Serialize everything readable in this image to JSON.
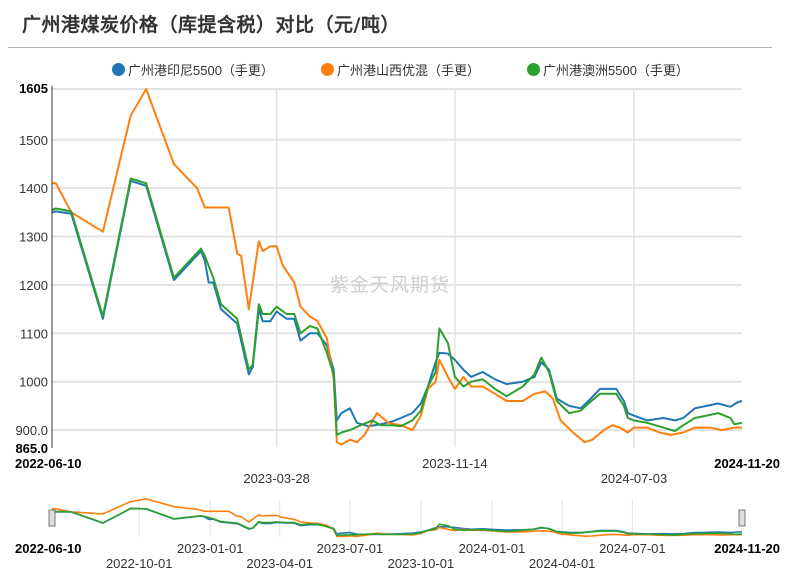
{
  "header": {
    "title": "广州港煤炭价格（库提含税）对比（元/吨）"
  },
  "watermark": "紫金天风期货",
  "legend": [
    {
      "label": "广州港印尼5500（手更)",
      "color": "#1f77b4"
    },
    {
      "label": "广州港山西优混（手更)",
      "color": "#ff7f0e"
    },
    {
      "label": "广州港澳洲5500（手更)",
      "color": "#2ca02c"
    }
  ],
  "legend_display": [
    "广州港印尼5500（手更）",
    "广州港山西优混（手更）",
    "广州港澳洲5500（手更）"
  ],
  "axes": {
    "y_max_label": "1605",
    "y_min_label": "865.0",
    "y_ticks": [
      "1500",
      "1400",
      "1300",
      "1200",
      "1100",
      "1000",
      "900.0"
    ],
    "x_start_label": "2022-06-10",
    "x_end_label": "2024-11-20",
    "x_ticks": [
      "2023-03-28",
      "2023-11-14",
      "2024-07-03"
    ]
  },
  "navigator": {
    "start_label": "2022-06-10",
    "end_label": "2024-11-20",
    "ticks_upper": [
      "2023-01-01",
      "2023-07-01",
      "2024-01-01",
      "2024-07-01"
    ],
    "ticks_lower": [
      "2022-10-01",
      "2023-04-01",
      "2023-10-01",
      "2024-04-01"
    ]
  },
  "chart_data": {
    "type": "line",
    "title": "广州港煤炭价格（库提含税）对比（元/吨）",
    "xlabel": "",
    "ylabel": "元/吨",
    "ylim": [
      865,
      1605
    ],
    "xlim": [
      "2022-06-10",
      "2024-11-20"
    ],
    "grid": true,
    "legend_position": "top",
    "x_ticks": [
      "2022-06-10",
      "2023-03-28",
      "2023-11-14",
      "2024-07-03",
      "2024-11-20"
    ],
    "series": [
      {
        "name": "广州港印尼5500（手更）",
        "color": "#1f77b4",
        "points": [
          [
            "2022-06-10",
            1350
          ],
          [
            "2022-06-15",
            1352
          ],
          [
            "2022-07-05",
            1347
          ],
          [
            "2022-08-15",
            1130
          ],
          [
            "2022-09-20",
            1415
          ],
          [
            "2022-10-10",
            1405
          ],
          [
            "2022-11-15",
            1210
          ],
          [
            "2022-12-20",
            1270
          ],
          [
            "2022-12-25",
            1250
          ],
          [
            "2022-12-30",
            1205
          ],
          [
            "2023-01-05",
            1205
          ],
          [
            "2023-01-15",
            1150
          ],
          [
            "2023-02-05",
            1120
          ],
          [
            "2023-02-20",
            1015
          ],
          [
            "2023-02-25",
            1030
          ],
          [
            "2023-03-05",
            1150
          ],
          [
            "2023-03-10",
            1125
          ],
          [
            "2023-03-20",
            1125
          ],
          [
            "2023-03-28",
            1145
          ],
          [
            "2023-04-10",
            1130
          ],
          [
            "2023-04-20",
            1130
          ],
          [
            "2023-04-28",
            1085
          ],
          [
            "2023-05-10",
            1100
          ],
          [
            "2023-05-20",
            1100
          ],
          [
            "2023-06-01",
            1075
          ],
          [
            "2023-06-10",
            1025
          ],
          [
            "2023-06-14",
            920
          ],
          [
            "2023-06-20",
            935
          ],
          [
            "2023-07-01",
            945
          ],
          [
            "2023-07-10",
            915
          ],
          [
            "2023-07-25",
            908
          ],
          [
            "2023-08-10",
            912
          ],
          [
            "2023-08-25",
            918
          ],
          [
            "2023-09-05",
            925
          ],
          [
            "2023-09-20",
            935
          ],
          [
            "2023-10-01",
            955
          ],
          [
            "2023-10-10",
            990
          ],
          [
            "2023-10-20",
            1040
          ],
          [
            "2023-10-25",
            1060
          ],
          [
            "2023-11-05",
            1058
          ],
          [
            "2023-11-14",
            1045
          ],
          [
            "2023-11-25",
            1025
          ],
          [
            "2023-12-05",
            1010
          ],
          [
            "2023-12-20",
            1020
          ],
          [
            "2024-01-05",
            1005
          ],
          [
            "2024-01-20",
            995
          ],
          [
            "2024-02-10",
            1000
          ],
          [
            "2024-02-25",
            1010
          ],
          [
            "2024-03-05",
            1040
          ],
          [
            "2024-03-15",
            1025
          ],
          [
            "2024-03-25",
            965
          ],
          [
            "2024-04-10",
            950
          ],
          [
            "2024-04-25",
            945
          ],
          [
            "2024-05-05",
            960
          ],
          [
            "2024-05-20",
            985
          ],
          [
            "2024-06-10",
            985
          ],
          [
            "2024-06-20",
            960
          ],
          [
            "2024-06-25",
            935
          ],
          [
            "2024-07-03",
            930
          ],
          [
            "2024-07-20",
            920
          ],
          [
            "2024-08-10",
            925
          ],
          [
            "2024-08-25",
            920
          ],
          [
            "2024-09-05",
            925
          ],
          [
            "2024-09-20",
            945
          ],
          [
            "2024-10-05",
            950
          ],
          [
            "2024-10-20",
            955
          ],
          [
            "2024-11-05",
            948
          ],
          [
            "2024-11-15",
            958
          ],
          [
            "2024-11-20",
            960
          ]
        ]
      },
      {
        "name": "广州港山西优混（手更）",
        "color": "#ff7f0e",
        "points": [
          [
            "2022-06-10",
            1410
          ],
          [
            "2022-06-15",
            1410
          ],
          [
            "2022-07-05",
            1350
          ],
          [
            "2022-08-15",
            1310
          ],
          [
            "2022-09-20",
            1550
          ],
          [
            "2022-10-10",
            1605
          ],
          [
            "2022-11-15",
            1450
          ],
          [
            "2022-12-15",
            1400
          ],
          [
            "2022-12-25",
            1360
          ],
          [
            "2023-01-25",
            1360
          ],
          [
            "2023-02-01",
            1300
          ],
          [
            "2023-02-05",
            1265
          ],
          [
            "2023-02-10",
            1260
          ],
          [
            "2023-02-20",
            1150
          ],
          [
            "2023-03-05",
            1290
          ],
          [
            "2023-03-10",
            1270
          ],
          [
            "2023-03-20",
            1280
          ],
          [
            "2023-03-28",
            1280
          ],
          [
            "2023-04-05",
            1240
          ],
          [
            "2023-04-20",
            1205
          ],
          [
            "2023-04-28",
            1155
          ],
          [
            "2023-05-10",
            1135
          ],
          [
            "2023-05-20",
            1125
          ],
          [
            "2023-06-01",
            1090
          ],
          [
            "2023-06-10",
            1005
          ],
          [
            "2023-06-14",
            875
          ],
          [
            "2023-06-20",
            870
          ],
          [
            "2023-07-01",
            880
          ],
          [
            "2023-07-10",
            875
          ],
          [
            "2023-07-20",
            890
          ],
          [
            "2023-08-05",
            935
          ],
          [
            "2023-08-20",
            915
          ],
          [
            "2023-09-05",
            910
          ],
          [
            "2023-09-20",
            900
          ],
          [
            "2023-10-01",
            930
          ],
          [
            "2023-10-10",
            985
          ],
          [
            "2023-10-20",
            1000
          ],
          [
            "2023-10-25",
            1045
          ],
          [
            "2023-11-05",
            1010
          ],
          [
            "2023-11-14",
            985
          ],
          [
            "2023-11-25",
            1010
          ],
          [
            "2023-12-05",
            990
          ],
          [
            "2023-12-20",
            990
          ],
          [
            "2024-01-05",
            975
          ],
          [
            "2024-01-20",
            960
          ],
          [
            "2024-02-10",
            960
          ],
          [
            "2024-02-25",
            975
          ],
          [
            "2024-03-10",
            980
          ],
          [
            "2024-03-20",
            965
          ],
          [
            "2024-03-30",
            920
          ],
          [
            "2024-04-15",
            895
          ],
          [
            "2024-04-30",
            875
          ],
          [
            "2024-05-10",
            880
          ],
          [
            "2024-05-25",
            900
          ],
          [
            "2024-06-05",
            910
          ],
          [
            "2024-06-15",
            905
          ],
          [
            "2024-06-25",
            895
          ],
          [
            "2024-07-03",
            905
          ],
          [
            "2024-07-20",
            905
          ],
          [
            "2024-08-05",
            895
          ],
          [
            "2024-08-20",
            890
          ],
          [
            "2024-09-05",
            895
          ],
          [
            "2024-09-20",
            905
          ],
          [
            "2024-10-10",
            905
          ],
          [
            "2024-10-25",
            900
          ],
          [
            "2024-11-10",
            905
          ],
          [
            "2024-11-20",
            905
          ]
        ]
      },
      {
        "name": "广州港澳洲5500（手更）",
        "color": "#2ca02c",
        "points": [
          [
            "2022-06-10",
            1355
          ],
          [
            "2022-06-15",
            1358
          ],
          [
            "2022-07-05",
            1352
          ],
          [
            "2022-08-15",
            1135
          ],
          [
            "2022-09-20",
            1420
          ],
          [
            "2022-10-10",
            1410
          ],
          [
            "2022-11-15",
            1215
          ],
          [
            "2022-12-20",
            1275
          ],
          [
            "2022-12-25",
            1260
          ],
          [
            "2023-01-05",
            1215
          ],
          [
            "2023-01-15",
            1160
          ],
          [
            "2023-02-05",
            1130
          ],
          [
            "2023-02-20",
            1025
          ],
          [
            "2023-02-25",
            1035
          ],
          [
            "2023-03-05",
            1160
          ],
          [
            "2023-03-10",
            1140
          ],
          [
            "2023-03-20",
            1140
          ],
          [
            "2023-03-28",
            1155
          ],
          [
            "2023-04-10",
            1140
          ],
          [
            "2023-04-20",
            1140
          ],
          [
            "2023-04-28",
            1100
          ],
          [
            "2023-05-10",
            1115
          ],
          [
            "2023-05-20",
            1110
          ],
          [
            "2023-06-01",
            1060
          ],
          [
            "2023-06-10",
            1015
          ],
          [
            "2023-06-14",
            890
          ],
          [
            "2023-06-20",
            895
          ],
          [
            "2023-07-01",
            900
          ],
          [
            "2023-07-15",
            910
          ],
          [
            "2023-07-30",
            920
          ],
          [
            "2023-08-10",
            910
          ],
          [
            "2023-08-25",
            910
          ],
          [
            "2023-09-05",
            908
          ],
          [
            "2023-09-20",
            920
          ],
          [
            "2023-10-01",
            940
          ],
          [
            "2023-10-10",
            990
          ],
          [
            "2023-10-20",
            1020
          ],
          [
            "2023-10-25",
            1110
          ],
          [
            "2023-11-05",
            1080
          ],
          [
            "2023-11-10",
            1040
          ],
          [
            "2023-11-14",
            1010
          ],
          [
            "2023-11-25",
            990
          ],
          [
            "2023-12-05",
            1000
          ],
          [
            "2023-12-20",
            1005
          ],
          [
            "2024-01-05",
            985
          ],
          [
            "2024-01-20",
            970
          ],
          [
            "2024-02-10",
            990
          ],
          [
            "2024-02-25",
            1015
          ],
          [
            "2024-03-05",
            1050
          ],
          [
            "2024-03-15",
            1020
          ],
          [
            "2024-03-25",
            960
          ],
          [
            "2024-04-10",
            935
          ],
          [
            "2024-04-25",
            940
          ],
          [
            "2024-05-05",
            955
          ],
          [
            "2024-05-20",
            975
          ],
          [
            "2024-06-10",
            975
          ],
          [
            "2024-06-20",
            950
          ],
          [
            "2024-06-25",
            925
          ],
          [
            "2024-07-03",
            920
          ],
          [
            "2024-07-20",
            915
          ],
          [
            "2024-08-10",
            905
          ],
          [
            "2024-08-25",
            898
          ],
          [
            "2024-09-05",
            910
          ],
          [
            "2024-09-20",
            925
          ],
          [
            "2024-10-05",
            930
          ],
          [
            "2024-10-20",
            935
          ],
          [
            "2024-11-05",
            925
          ],
          [
            "2024-11-10",
            912
          ],
          [
            "2024-11-20",
            915
          ]
        ]
      }
    ]
  }
}
